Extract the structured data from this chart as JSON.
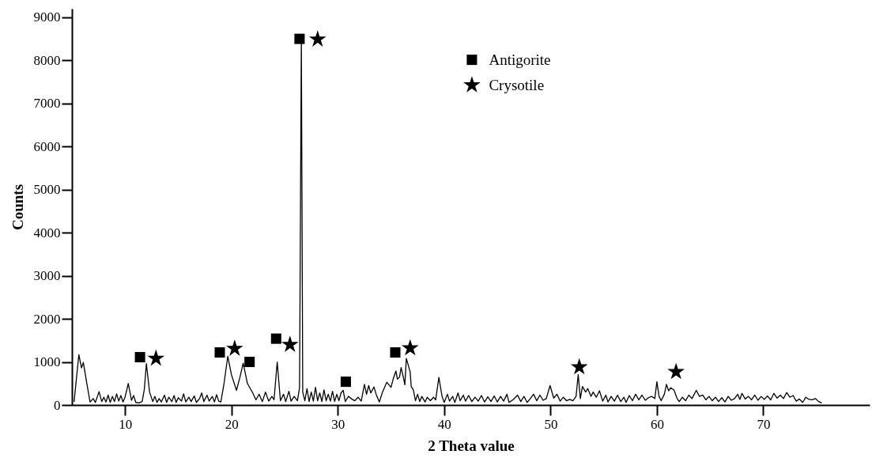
{
  "chart_data": {
    "type": "line",
    "xlabel": "2 Theta value",
    "ylabel": "Counts",
    "xlim": [
      5,
      80
    ],
    "xticks": [
      10,
      20,
      30,
      40,
      50,
      60,
      70
    ],
    "ylim": [
      0,
      9200
    ],
    "yticks": [
      0,
      1000,
      2000,
      3000,
      4000,
      5000,
      6000,
      7000,
      8000,
      9000
    ],
    "legend": "top",
    "series": [
      {
        "color": "#000000",
        "line_style": "solid",
        "x": [
          5.2,
          5.65,
          5.9,
          6.07,
          6.4,
          6.7,
          7.0,
          7.2,
          7.55,
          7.8,
          8.0,
          8.2,
          8.4,
          8.6,
          8.8,
          9.0,
          9.2,
          9.4,
          9.6,
          9.8,
          10.0,
          10.3,
          10.6,
          10.8,
          11.0,
          11.3,
          11.6,
          11.8,
          12.0,
          12.3,
          12.6,
          12.8,
          13.0,
          13.2,
          13.4,
          13.7,
          13.9,
          14.1,
          14.4,
          14.6,
          14.8,
          15.0,
          15.3,
          15.5,
          15.7,
          16.0,
          16.2,
          16.5,
          16.7,
          17.0,
          17.2,
          17.4,
          17.7,
          17.9,
          18.2,
          18.4,
          18.6,
          18.8,
          19.0,
          19.3,
          19.65,
          20.0,
          20.47,
          20.8,
          21.1,
          21.5,
          22.0,
          22.3,
          22.6,
          22.9,
          23.2,
          23.5,
          23.8,
          24.0,
          24.3,
          24.6,
          24.9,
          25.1,
          25.4,
          25.6,
          25.9,
          26.2,
          26.4,
          26.57,
          26.7,
          26.9,
          27.1,
          27.3,
          27.5,
          27.7,
          27.9,
          28.1,
          28.3,
          28.5,
          28.7,
          28.9,
          29.1,
          29.3,
          29.5,
          29.7,
          29.9,
          30.1,
          30.3,
          30.5,
          30.7,
          31.0,
          31.3,
          31.6,
          31.9,
          32.2,
          32.5,
          32.7,
          32.9,
          33.1,
          33.4,
          33.6,
          33.9,
          34.2,
          34.6,
          35.0,
          35.2,
          35.46,
          35.6,
          35.8,
          35.95,
          36.2,
          36.3,
          36.44,
          36.8,
          36.9,
          37.1,
          37.3,
          37.5,
          37.7,
          37.9,
          38.2,
          38.4,
          38.7,
          39.0,
          39.2,
          39.5,
          39.8,
          40.0,
          40.3,
          40.5,
          40.8,
          41.0,
          41.3,
          41.5,
          41.8,
          42.0,
          42.3,
          42.6,
          42.9,
          43.2,
          43.5,
          43.8,
          44.1,
          44.4,
          44.7,
          45.0,
          45.3,
          45.6,
          45.9,
          46.1,
          46.5,
          46.9,
          47.2,
          47.5,
          47.8,
          48.1,
          48.4,
          48.7,
          49.0,
          49.3,
          49.6,
          49.95,
          50.3,
          50.6,
          50.9,
          51.2,
          51.5,
          51.8,
          52.1,
          52.4,
          52.6,
          52.8,
          53.0,
          53.3,
          53.5,
          53.8,
          54.0,
          54.3,
          54.6,
          54.9,
          55.2,
          55.4,
          55.7,
          56.0,
          56.3,
          56.6,
          56.9,
          57.1,
          57.4,
          57.7,
          58.0,
          58.3,
          58.6,
          58.9,
          59.2,
          59.5,
          59.8,
          60.0,
          60.2,
          60.4,
          60.7,
          60.9,
          61.1,
          61.3,
          61.6,
          61.9,
          62.1,
          62.4,
          62.7,
          63.0,
          63.3,
          63.7,
          64.0,
          64.3,
          64.6,
          64.9,
          65.2,
          65.5,
          65.8,
          66.1,
          66.4,
          66.7,
          67.0,
          67.3,
          67.6,
          67.8,
          68.0,
          68.3,
          68.6,
          68.9,
          69.2,
          69.5,
          69.8,
          70.1,
          70.4,
          70.7,
          71.0,
          71.3,
          71.6,
          71.9,
          72.2,
          72.5,
          72.8,
          73.1,
          73.4,
          73.7,
          74.0,
          74.3,
          74.6,
          74.9,
          75.2,
          75.5
        ],
        "values": [
          70,
          1170,
          860,
          990,
          500,
          70,
          150,
          60,
          310,
          80,
          180,
          70,
          230,
          60,
          200,
          80,
          260,
          90,
          220,
          70,
          190,
          500,
          110,
          220,
          60,
          50,
          80,
          350,
          960,
          300,
          80,
          200,
          60,
          150,
          70,
          230,
          60,
          180,
          80,
          220,
          60,
          170,
          90,
          260,
          70,
          180,
          80,
          210,
          60,
          150,
          280,
          80,
          230,
          90,
          200,
          70,
          240,
          90,
          70,
          500,
          1130,
          700,
          340,
          650,
          970,
          500,
          280,
          120,
          250,
          80,
          300,
          90,
          200,
          120,
          1000,
          100,
          250,
          80,
          320,
          90,
          200,
          100,
          400,
          8500,
          300,
          100,
          380,
          80,
          300,
          90,
          410,
          100,
          280,
          80,
          350,
          100,
          250,
          90,
          320,
          80,
          250,
          100,
          280,
          340,
          80,
          200,
          140,
          100,
          180,
          90,
          480,
          250,
          450,
          280,
          420,
          250,
          70,
          300,
          530,
          410,
          600,
          790,
          600,
          650,
          870,
          600,
          470,
          1080,
          770,
          430,
          350,
          100,
          250,
          80,
          200,
          70,
          180,
          100,
          180,
          120,
          640,
          200,
          60,
          250,
          90,
          200,
          60,
          280,
          100,
          230,
          90,
          220,
          80,
          180,
          90,
          220,
          70,
          190,
          80,
          210,
          70,
          200,
          90,
          250,
          60,
          130,
          230,
          80,
          200,
          60,
          150,
          250,
          100,
          230,
          110,
          150,
          450,
          160,
          250,
          90,
          180,
          100,
          130,
          100,
          200,
          710,
          150,
          430,
          300,
          380,
          200,
          300,
          180,
          330,
          90,
          230,
          70,
          200,
          90,
          230,
          80,
          180,
          60,
          220,
          100,
          250,
          120,
          230,
          110,
          170,
          200,
          150,
          540,
          200,
          100,
          250,
          480,
          330,
          400,
          350,
          150,
          80,
          180,
          100,
          230,
          150,
          340,
          200,
          230,
          120,
          200,
          100,
          180,
          80,
          170,
          70,
          200,
          110,
          150,
          250,
          130,
          270,
          140,
          200,
          120,
          230,
          110,
          200,
          130,
          210,
          120,
          270,
          160,
          230,
          150,
          290,
          180,
          220,
          90,
          140,
          60,
          180,
          130,
          120,
          150,
          80,
          50
        ]
      },
      {
        "type": "scatter",
        "name": "Antigorite",
        "marker": "square",
        "color": "#000000",
        "x": [
          11.4,
          18.9,
          21.7,
          24.2,
          26.4,
          30.75,
          35.4
        ],
        "values": [
          1110,
          1220,
          1000,
          1540,
          8500,
          540,
          1220
        ]
      },
      {
        "type": "scatter",
        "name": "Crysotile",
        "marker": "star",
        "color": "#000000",
        "x": [
          12.9,
          20.3,
          25.5,
          28.1,
          36.8,
          52.7,
          61.8
        ],
        "values": [
          1080,
          1310,
          1400,
          8490,
          1320,
          880,
          770
        ]
      }
    ]
  }
}
